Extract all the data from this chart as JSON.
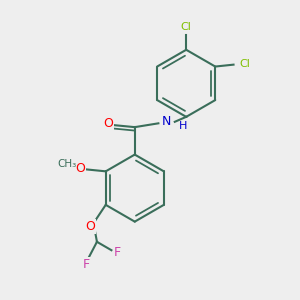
{
  "background_color": "#eeeeee",
  "bond_color": "#3a6e5a",
  "bond_width": 1.5,
  "atom_colors": {
    "C": "#3a6e5a",
    "H": "#3a6e5a",
    "O": "#ff0000",
    "N": "#0000cc",
    "Cl": "#7fbf00",
    "F": "#cc44aa"
  },
  "fig_width": 3.0,
  "fig_height": 3.0,
  "dpi": 100
}
